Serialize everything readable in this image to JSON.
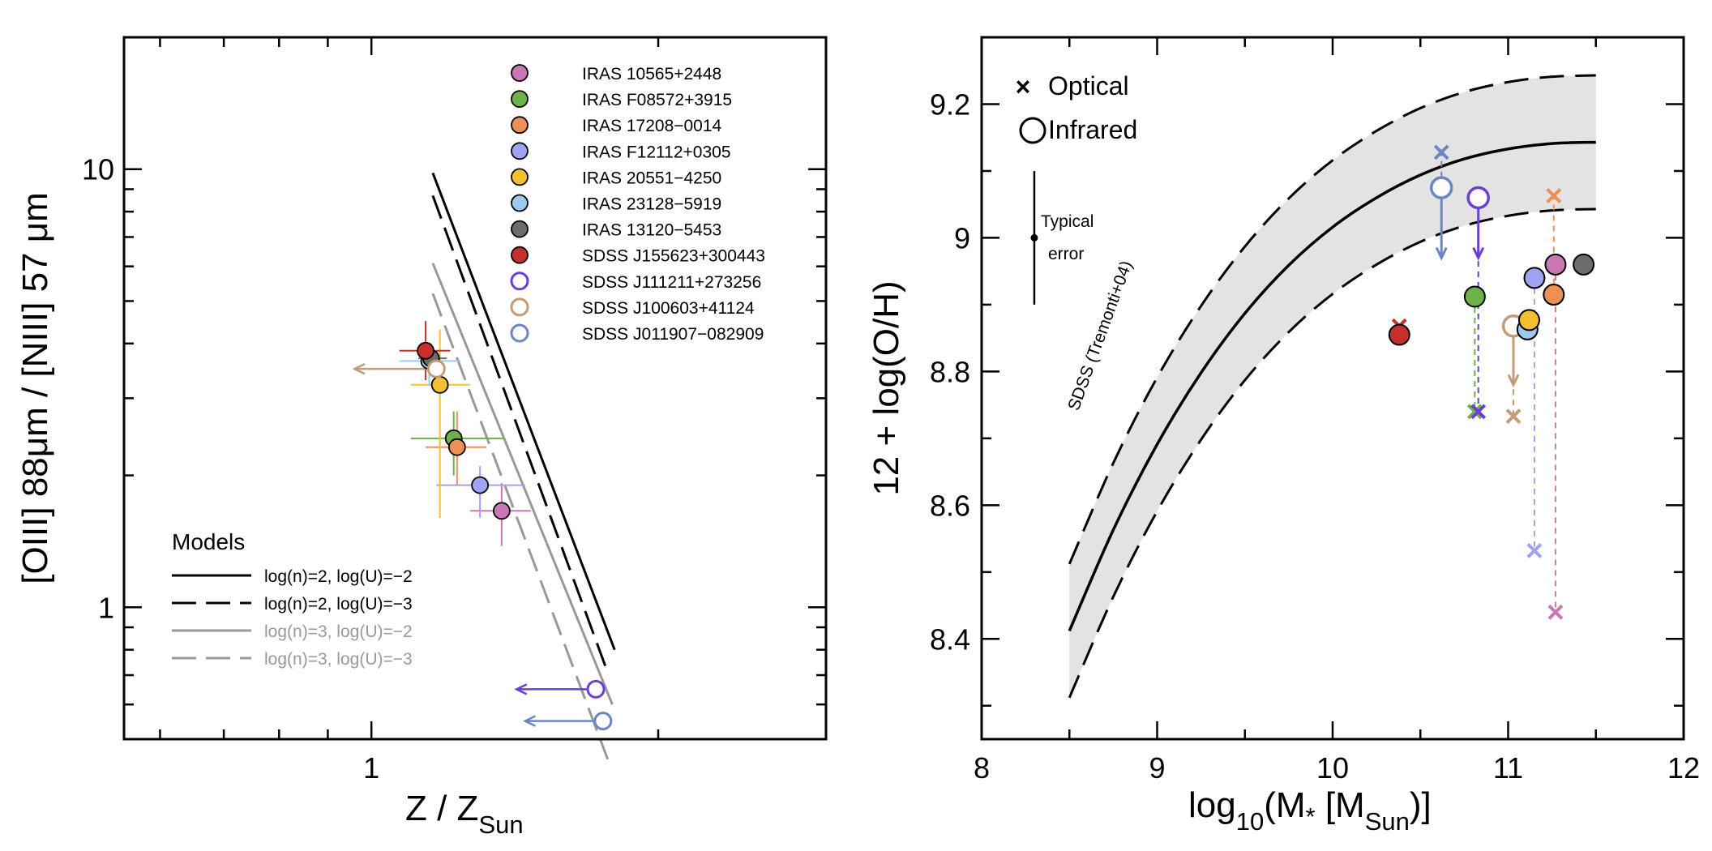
{
  "chart_data": [
    {
      "type": "scatter",
      "xscale": "log",
      "yscale": "log",
      "xlim": [
        0.55,
        3.0
      ],
      "ylim": [
        0.5,
        20
      ],
      "xticks": [
        1
      ],
      "yticks": [
        1,
        10
      ],
      "xlabel": "Z / Z",
      "xlabel_sub": "Sun",
      "ylabel": "[OIII] 88μm / [NIII] 57 μm",
      "models_title": "Models",
      "models": [
        {
          "label": "log(n)=2, log(U)=−2",
          "color": "#000000",
          "dash": "solid",
          "x": [
            1.16,
            1.8
          ],
          "y": [
            9.8,
            0.8
          ]
        },
        {
          "label": "log(n)=2, log(U)=−3",
          "color": "#000000",
          "dash": "dashed",
          "x": [
            1.16,
            1.77
          ],
          "y": [
            8.7,
            0.71
          ]
        },
        {
          "label": "log(n)=3, log(U)=−2",
          "color": "#999999",
          "dash": "solid",
          "x": [
            1.16,
            1.79
          ],
          "y": [
            6.1,
            0.6
          ]
        },
        {
          "label": "log(n)=3, log(U)=−3",
          "color": "#999999",
          "dash": "dashed",
          "x": [
            1.16,
            1.77
          ],
          "y": [
            5.2,
            0.45
          ]
        }
      ],
      "series": [
        {
          "name": "IRAS 10565+2448",
          "color": "#cc77b5",
          "open": false,
          "x": 1.37,
          "y": 1.66,
          "xerr": [
            1.27,
            1.47
          ],
          "yerr": [
            1.38,
            1.92
          ]
        },
        {
          "name": "IRAS F08572+3915",
          "color": "#6db14b",
          "open": false,
          "x": 1.22,
          "y": 2.43,
          "xerr": [
            1.1,
            1.38
          ],
          "yerr": [
            2.0,
            2.8
          ]
        },
        {
          "name": "IRAS 17208−0014",
          "color": "#ee8f55",
          "open": false,
          "x": 1.23,
          "y": 2.32,
          "xerr": [
            1.14,
            1.32
          ],
          "yerr": [
            1.9,
            2.8
          ]
        },
        {
          "name": "IRAS F12112+0305",
          "color": "#9ea4f1",
          "open": false,
          "x": 1.3,
          "y": 1.9,
          "xerr": [
            1.17,
            1.45
          ],
          "yerr": [
            1.6,
            2.1
          ]
        },
        {
          "name": "IRAS 20551−4250",
          "color": "#f4bf31",
          "open": false,
          "x": 1.18,
          "y": 3.22,
          "xerr": [
            1.1,
            1.27
          ],
          "yerr": [
            1.6,
            4.3
          ]
        },
        {
          "name": "IRAS 23128−5919",
          "color": "#9ec8ee",
          "open": false,
          "x": 1.15,
          "y": 3.65,
          "xerr": [
            1.07,
            1.24
          ],
          "yerr": [
            3.2,
            4.0
          ]
        },
        {
          "name": "IRAS 13120−5453",
          "color": "#6c6c6c",
          "open": false,
          "x": 1.155,
          "y": 3.7,
          "xerr": [
            1.12,
            1.2
          ],
          "yerr": [
            3.4,
            4.0
          ]
        },
        {
          "name": "SDSS J155623+300443",
          "color": "#c62f2a",
          "open": false,
          "x": 1.14,
          "y": 3.85,
          "xerr": [
            1.07,
            1.21
          ],
          "yerr": [
            3.3,
            4.5
          ]
        },
        {
          "name": "SDSS J111211+273256",
          "color": "#6b3ed6",
          "open": true,
          "x": 1.72,
          "y": 0.65,
          "arrow_to_x": 1.42
        },
        {
          "name": "SDSS J100603+41124",
          "color": "#c29c74",
          "open": true,
          "x": 1.17,
          "y": 3.5,
          "arrow_to_x": 0.96
        },
        {
          "name": "SDSS J011907−082909",
          "color": "#6c86c1",
          "open": true,
          "x": 1.75,
          "y": 0.55,
          "arrow_to_x": 1.45
        }
      ]
    },
    {
      "type": "scatter",
      "xlim": [
        8,
        12
      ],
      "ylim": [
        8.25,
        9.3
      ],
      "xticks": [
        8,
        9,
        10,
        11,
        12
      ],
      "yticks": [
        8.4,
        8.6,
        8.8,
        9.0,
        9.2
      ],
      "ytick_labels": [
        "8.4",
        "8.6",
        "8.8",
        "9",
        "9.2"
      ],
      "xlabel": "log",
      "xlabel_sub": "10",
      "xlabel_rest": "(M",
      "xlabel_star": "*",
      "xlabel_bracket": " [M",
      "xlabel_sub2": "Sun",
      "xlabel_end": ")]",
      "ylabel": "12 + log(O/H)",
      "relation_label": "SDSS (Tremonti+04)",
      "relation": {
        "x": [
          8.5,
          8.75,
          9.0,
          9.25,
          9.5,
          9.75,
          10.0,
          10.25,
          10.5,
          10.75,
          11.0,
          11.25,
          11.5
        ],
        "median": [
          8.412,
          8.563,
          8.691,
          8.798,
          8.887,
          8.959,
          9.016,
          9.06,
          9.094,
          9.118,
          9.133,
          9.141,
          9.143
        ],
        "upper": [
          8.512,
          8.663,
          8.791,
          8.898,
          8.987,
          9.059,
          9.116,
          9.16,
          9.194,
          9.218,
          9.233,
          9.241,
          9.243
        ],
        "lower": [
          8.312,
          8.463,
          8.591,
          8.698,
          8.787,
          8.859,
          8.916,
          8.96,
          8.994,
          9.018,
          9.033,
          9.041,
          9.043
        ]
      },
      "legend": {
        "optical": "Optical",
        "infrared": "Infrared"
      },
      "typical_error_label": [
        "Typical",
        "error"
      ],
      "typical_error": {
        "x": 8.3,
        "y": 9.0,
        "yerr": [
          8.9,
          9.1
        ]
      },
      "series": [
        {
          "name": "SDSS J155623+300443",
          "color": "#c62f2a",
          "mass": 10.38,
          "infrared": 8.855,
          "optical": 8.868,
          "open": false
        },
        {
          "name": "SDSS J011907−082909",
          "color": "#6c86c1",
          "mass": 10.62,
          "infrared": 9.075,
          "optical": 9.128,
          "open": true,
          "arrow_to": 8.97
        },
        {
          "name": "IRAS F08572+3915",
          "color": "#6db14b",
          "mass": 10.81,
          "infrared": 8.912,
          "optical": 8.74,
          "open": false
        },
        {
          "name": "SDSS J111211+273256",
          "color": "#6b3ed6",
          "mass": 10.83,
          "infrared": 9.06,
          "optical": 8.74,
          "open": true,
          "arrow_to": 8.97
        },
        {
          "name": "SDSS J100603+41124",
          "color": "#c29c74",
          "mass": 11.03,
          "infrared": 8.868,
          "optical": 8.733,
          "open": true,
          "arrow_to": 8.78
        },
        {
          "name": "IRAS 23128−5919",
          "color": "#9ec8ee",
          "mass": 11.11,
          "infrared": 8.863,
          "open": false
        },
        {
          "name": "IRAS 20551−4250",
          "color": "#f4bf31",
          "mass": 11.12,
          "infrared": 8.877,
          "open": false
        },
        {
          "name": "IRAS F12112+0305",
          "color": "#9ea4f1",
          "mass": 11.15,
          "infrared": 8.94,
          "optical": 8.532,
          "open": false
        },
        {
          "name": "IRAS 17208−0014",
          "color": "#ee8f55",
          "mass": 11.26,
          "infrared": 8.915,
          "optical": 9.063,
          "open": false
        },
        {
          "name": "IRAS 10565+2448",
          "color": "#cc77b5",
          "mass": 11.27,
          "infrared": 8.96,
          "optical": 8.44,
          "open": false
        },
        {
          "name": "IRAS 13120−5453",
          "color": "#6c6c6c",
          "mass": 11.43,
          "infrared": 8.96,
          "open": false
        }
      ]
    }
  ]
}
